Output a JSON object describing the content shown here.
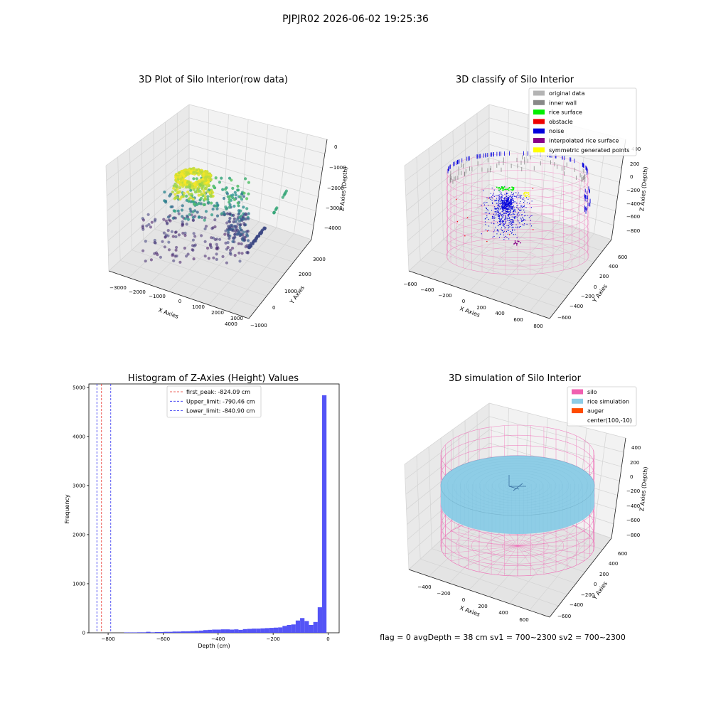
{
  "suptitle": "PJPJR02 2026-06-02 19:25:36",
  "status_text": "flag = 0     avgDepth = 38 cm     sv1 = 700~2300  sv2 = 700~2300",
  "colors": {
    "histogram_bar": "#4b4bf6",
    "first_peak_line": "#e8302a",
    "limit_line": "#2a2af0",
    "silo": "#f060b0",
    "rice_simulation": "#8ecde6",
    "auger": "#ff4c00",
    "original_data": "#b4b4b4",
    "inner_wall": "#888888",
    "rice_surface": "#00ee00",
    "obstacle": "#ee0000",
    "noise": "#0000dd",
    "interpolated_rice_surface": "#880088",
    "symmetric_generated_points": "#ffff00"
  },
  "panel_raw": {
    "title": "3D Plot of Silo Interior(row data)",
    "xlabel": "X Axies",
    "ylabel": "Y Axies",
    "zlabel": "Z Axies (Depth)",
    "x_ticks": [
      "−3000",
      "−2000",
      "−1000",
      "0",
      "1000",
      "2000",
      "3000",
      "4000"
    ],
    "y_ticks": [
      "−1000",
      "0",
      "1000",
      "2000",
      "3000"
    ],
    "z_ticks": [
      "0",
      "−1000",
      "−2000",
      "−3000",
      "−4000"
    ]
  },
  "panel_classify": {
    "title": "3D classify of Silo Interior",
    "xlabel": "X Axies",
    "ylabel": "Y Axies",
    "zlabel": "Z Axies (Depth)",
    "x_ticks": [
      "−600",
      "−400",
      "−200",
      "0",
      "200",
      "400",
      "600",
      "800"
    ],
    "y_ticks": [
      "−600",
      "−400",
      "−200",
      "0",
      "200",
      "400",
      "600"
    ],
    "z_ticks": [
      "400",
      "200",
      "0",
      "−200",
      "−400",
      "−600",
      "−800"
    ],
    "legend": [
      {
        "label": "original data",
        "color": "#b4b4b4"
      },
      {
        "label": "inner wall",
        "color": "#888888"
      },
      {
        "label": "rice surface",
        "color": "#00ee00"
      },
      {
        "label": "obstacle",
        "color": "#ee0000"
      },
      {
        "label": "noise",
        "color": "#0000dd"
      },
      {
        "label": "interpolated rice surface",
        "color": "#880088"
      },
      {
        "label": "symmetric generated points",
        "color": "#ffff00"
      }
    ]
  },
  "panel_sim": {
    "title": "3D simulation of Silo Interior",
    "xlabel": "X Axies",
    "ylabel": "Y Axies",
    "zlabel": "Z Axies (Depth)",
    "x_ticks": [
      "−400",
      "−200",
      "0",
      "200",
      "400",
      "600"
    ],
    "y_ticks": [
      "−600",
      "−400",
      "−200",
      "0",
      "200",
      "400",
      "600"
    ],
    "z_ticks": [
      "400",
      "200",
      "0",
      "−200",
      "−400",
      "−600",
      "−800"
    ],
    "legend": [
      {
        "label": "silo",
        "color": "#f060b0"
      },
      {
        "label": "rice simulation",
        "color": "#8ecde6"
      },
      {
        "label": "auger",
        "color": "#ff4c00"
      },
      {
        "label": "center(100,-10)",
        "color": ""
      }
    ]
  },
  "chart_data": {
    "type": "bar",
    "title": "Histogram of Z-Axies (Height) Values",
    "xlabel": "Depth (cm)",
    "ylabel": "Frequency",
    "xlim": [
      -870,
      40
    ],
    "ylim": [
      0,
      5070
    ],
    "x_ticks": [
      -800,
      -600,
      -400,
      -200,
      0
    ],
    "y_ticks": [
      0,
      1000,
      2000,
      3000,
      4000,
      5000
    ],
    "bin_width": 16,
    "bins": [
      {
        "x": -734,
        "value": 8
      },
      {
        "x": -718,
        "value": 8
      },
      {
        "x": -702,
        "value": 8
      },
      {
        "x": -686,
        "value": 10
      },
      {
        "x": -670,
        "value": 10
      },
      {
        "x": -654,
        "value": 20
      },
      {
        "x": -638,
        "value": 10
      },
      {
        "x": -622,
        "value": 15
      },
      {
        "x": -606,
        "value": 15
      },
      {
        "x": -590,
        "value": 20
      },
      {
        "x": -574,
        "value": 20
      },
      {
        "x": -558,
        "value": 25
      },
      {
        "x": -542,
        "value": 25
      },
      {
        "x": -526,
        "value": 30
      },
      {
        "x": -510,
        "value": 30
      },
      {
        "x": -494,
        "value": 35
      },
      {
        "x": -478,
        "value": 40
      },
      {
        "x": -462,
        "value": 45
      },
      {
        "x": -446,
        "value": 55
      },
      {
        "x": -430,
        "value": 60
      },
      {
        "x": -414,
        "value": 65
      },
      {
        "x": -398,
        "value": 65
      },
      {
        "x": -382,
        "value": 70
      },
      {
        "x": -366,
        "value": 70
      },
      {
        "x": -350,
        "value": 65
      },
      {
        "x": -334,
        "value": 70
      },
      {
        "x": -318,
        "value": 60
      },
      {
        "x": -302,
        "value": 75
      },
      {
        "x": -286,
        "value": 80
      },
      {
        "x": -270,
        "value": 85
      },
      {
        "x": -254,
        "value": 85
      },
      {
        "x": -238,
        "value": 90
      },
      {
        "x": -222,
        "value": 95
      },
      {
        "x": -206,
        "value": 100
      },
      {
        "x": -190,
        "value": 105
      },
      {
        "x": -174,
        "value": 110
      },
      {
        "x": -158,
        "value": 140
      },
      {
        "x": -142,
        "value": 160
      },
      {
        "x": -126,
        "value": 170
      },
      {
        "x": -110,
        "value": 250
      },
      {
        "x": -94,
        "value": 300
      },
      {
        "x": -78,
        "value": 240
      },
      {
        "x": -62,
        "value": 160
      },
      {
        "x": -46,
        "value": 220
      },
      {
        "x": -30,
        "value": 520
      },
      {
        "x": -14,
        "value": 4840
      }
    ],
    "vlines": [
      {
        "label": "first_peak: -824.09 cm",
        "x": -824.09,
        "color": "#e8302a"
      },
      {
        "label": "Upper_limit: -790.46 cm",
        "x": -790.46,
        "color": "#2a2af0"
      },
      {
        "label": "Lower_limit: -840.90 cm",
        "x": -840.9,
        "color": "#2a2af0"
      }
    ],
    "legend_position": "top-center"
  }
}
